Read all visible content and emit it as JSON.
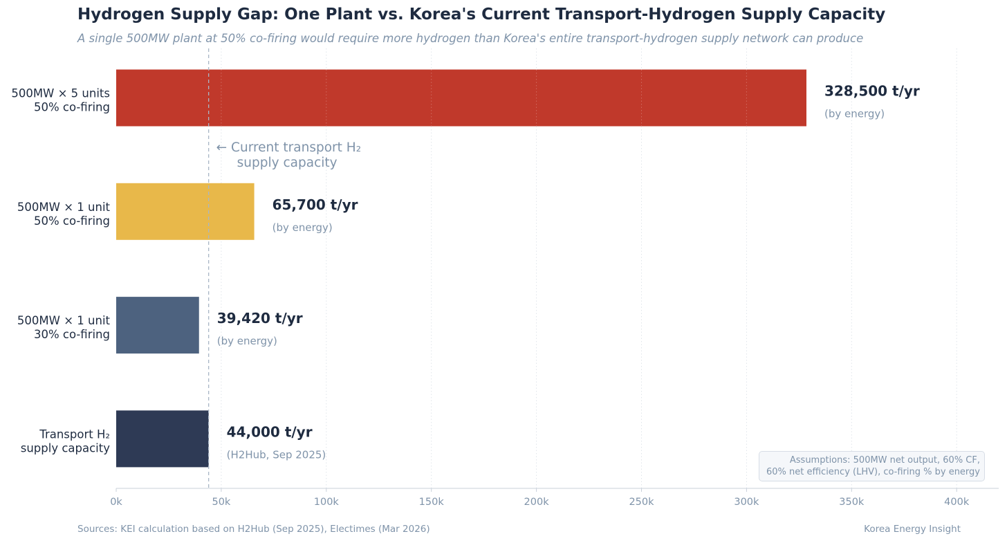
{
  "chart_data": {
    "type": "bar",
    "orientation": "horizontal",
    "title": "Hydrogen Supply Gap: One Plant vs. Korea's Current Transport-Hydrogen Supply Capacity",
    "subtitle": "A single 500MW plant at 50% co-firing would require more hydrogen than Korea's entire transport-hydrogen supply network can produce",
    "categories": [
      [
        "500MW × 5 units",
        "50% co-firing"
      ],
      [
        "500MW × 1 unit",
        "50% co-firing"
      ],
      [
        "500MW × 1 unit",
        "30% co-firing"
      ],
      [
        "Transport H₂",
        "supply capacity"
      ]
    ],
    "values": [
      328500,
      65700,
      39420,
      44000
    ],
    "value_labels": [
      "328,500 t/yr",
      "65,700 t/yr",
      "39,420 t/yr",
      "44,000 t/yr"
    ],
    "value_notes": [
      "(by energy)",
      "(by energy)",
      "(by energy)",
      "(H2Hub, Sep 2025)"
    ],
    "colors": [
      "#c0392b",
      "#e8b84a",
      "#4d627f",
      "#2e3a55"
    ],
    "xlim": [
      0,
      420000
    ],
    "xticks": [
      0,
      50000,
      100000,
      150000,
      200000,
      250000,
      300000,
      350000,
      400000
    ],
    "xtick_labels": [
      "0k",
      "50k",
      "100k",
      "150k",
      "200k",
      "250k",
      "300k",
      "350k",
      "400k"
    ],
    "xlabel": "",
    "ylabel": "",
    "grid": "vertical dotted",
    "reference_line": {
      "value": 44000,
      "label": [
        "← Current transport H₂",
        "supply capacity"
      ]
    }
  },
  "assumptions": [
    "Assumptions: 500MW net output, 60% CF,",
    "60% net efficiency (LHV), co-firing % by energy"
  ],
  "source": "Sources: KEI calculation based on H2Hub (Sep 2025), Electimes (Mar 2026)",
  "brand": "Korea Energy Insight"
}
